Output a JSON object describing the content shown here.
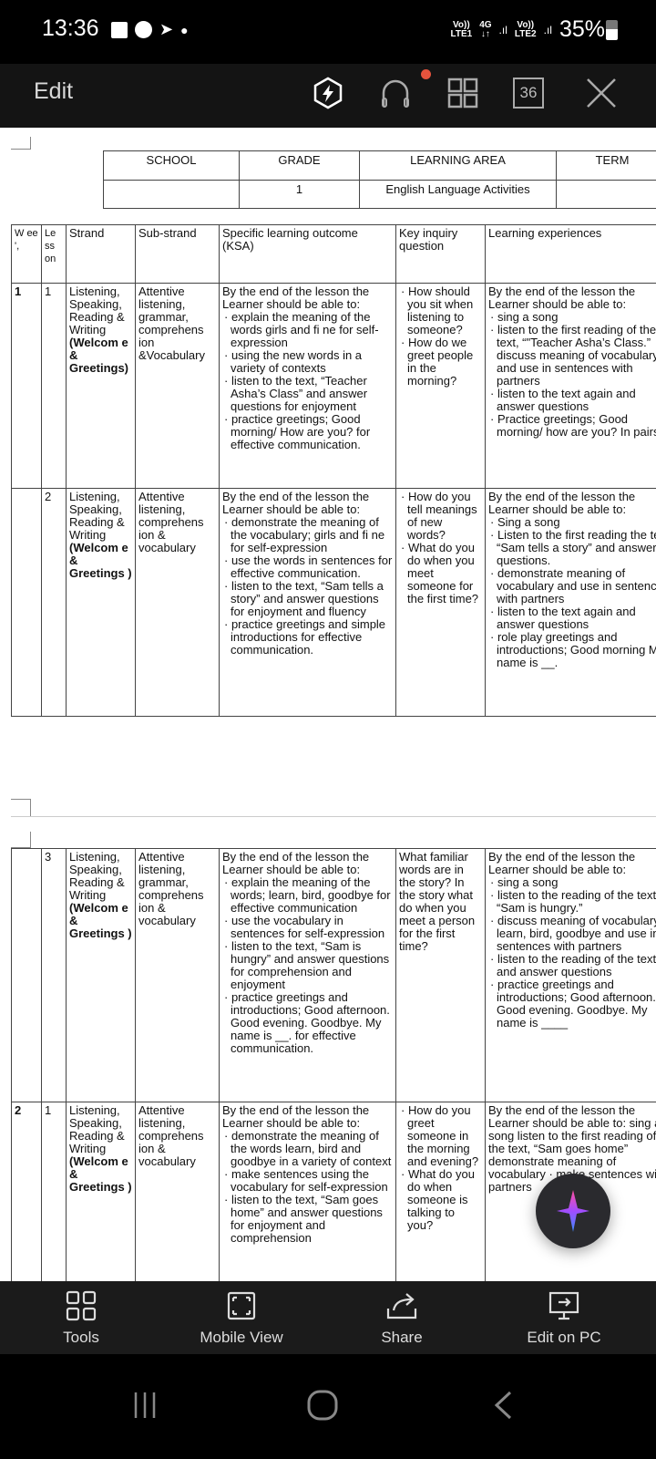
{
  "status_bar": {
    "time": "13:36",
    "net1_top": "Vo))",
    "net1_bottom": "LTE1",
    "net2_top": "4G",
    "net2_bottom": "↓↑",
    "net3_top": "Vo))",
    "net3_bottom": "LTE2",
    "battery": "35%"
  },
  "toolbar": {
    "edit_label": "Edit",
    "page_count": "36",
    "icons": [
      "power-save-icon",
      "headphones-icon",
      "grid-icon",
      "page-count-icon",
      "close-icon"
    ]
  },
  "header_table": {
    "columns": [
      "SCHOOL",
      "GRADE",
      "LEARNING AREA",
      "TERM"
    ],
    "values": [
      "",
      "1",
      "English Language Activities",
      ""
    ]
  },
  "main_table": {
    "columns": [
      "W ee ',",
      "Le ss on",
      "Strand",
      "Sub-strand",
      "Specific learning outcome (KSA)",
      "Key inquiry question",
      "Learning experiences"
    ],
    "rows": [
      {
        "week": "1",
        "lesson": "1",
        "strand": {
          "text": "Listening, Speaking, Reading & Writing",
          "bold": "(Welcom e & Greetings)"
        },
        "substrand": "Attentive listening, grammar, comprehens ion &Vocabulary",
        "outcome": {
          "intro": "By the end of the lesson the Learner should be able to:",
          "bullets": [
            "explain the meaning of the words girls and fi ne for self-expression",
            "using the new words in a variety of contexts",
            "listen to the text, “Teacher Asha’s Class” and answer questions for enjoyment",
            "practice greetings; Good morning/ How are you? for effective communication."
          ]
        },
        "inquiry": {
          "intro": "",
          "bullets": [
            "How should you sit when listening to someone?",
            "How do we greet people in the morning?"
          ]
        },
        "experiences": {
          "intro": "By the end of the lesson the Learner should be able to:",
          "bullets": [
            "sing a song",
            "listen to the first reading of the text, “\"Teacher Asha’s Class.” discuss meaning of vocabulary and use in sentences with partners",
            "listen to the text again and answer questions",
            "Practice greetings; Good morning/ how are you? In pairs."
          ]
        }
      },
      {
        "week": "",
        "lesson": "2",
        "strand": {
          "text": "Listening, Speaking, Reading & Writing",
          "bold": "(Welcom e & Greetings )"
        },
        "substrand": "Attentive listening, comprehens ion & vocabulary",
        "outcome": {
          "intro": "By the end of the lesson the Learner should be able to:",
          "bullets": [
            "demonstrate the meaning of the vocabulary; girls and fi ne for self-expression",
            "use the words in sentences for effective communication.",
            "listen to the text, “Sam tells a story” and answer questions for enjoyment and fluency",
            "practice greetings and simple introductions for effective communication."
          ]
        },
        "inquiry": {
          "intro": "",
          "bullets": [
            "How do you tell meanings of new words?",
            "What do you do when you meet someone for the first time?"
          ]
        },
        "experiences": {
          "intro": "By the end of the lesson the Learner should be able to:",
          "bullets": [
            "Sing a song",
            "Listen to the first reading the text, “Sam tells a story” and answer questions.",
            "demonstrate meaning of vocabulary and use in sentences with partners",
            "listen to the text again and answer questions",
            "role play greetings and introductions; Good morning My name is __."
          ]
        }
      }
    ]
  },
  "main_table_page2": {
    "rows": [
      {
        "week": "",
        "lesson": "3",
        "strand": {
          "text": "Listening, Speaking, Reading & Writing",
          "bold": "(Welcom e & Greetings )"
        },
        "substrand": "Attentive listening, grammar, comprehens ion & vocabulary",
        "outcome": {
          "intro": "By the end of the lesson the Learner should be able to:",
          "bullets": [
            "explain the meaning of the words; learn, bird, goodbye for effective communication",
            "use the vocabulary in sentences for self-expression",
            "listen to the text, “Sam is hungry” and answer questions for comprehension and enjoyment",
            "practice greetings and introductions; Good afternoon. Good evening. Goodbye. My name is __. for effective communication."
          ]
        },
        "inquiry": {
          "intro": "What familiar words are in the story? In the story what do when you meet a person for the first time?",
          "bullets": []
        },
        "experiences": {
          "intro": "By the end of the lesson the Learner should be able to:",
          "bullets": [
            "sing a song",
            "listen to the reading of the text, “Sam is hungry.”",
            "discuss meaning of vocabulary; learn, bird, goodbye and use in sentences with partners",
            "listen to the reading of the text and answer questions",
            "practice greetings and introductions; Good afternoon. Good evening. Goodbye. My name is ____"
          ]
        }
      },
      {
        "week": "2",
        "lesson": "1",
        "strand": {
          "text": "Listening, Speaking, Reading & Writing",
          "bold": "(Welcom e & Greetings )"
        },
        "substrand": "Attentive listening, comprehens ion & vocabulary",
        "outcome": {
          "intro": "By the end of the lesson the Learner should be able to:",
          "bullets": [
            "demonstrate the meaning of the words learn, bird and goodbye in a variety of context",
            "make sentences using the vocabulary for self-expression",
            "listen to the text, “Sam goes home” and answer questions for enjoyment and comprehension"
          ]
        },
        "inquiry": {
          "intro": "",
          "bullets": [
            "How do you greet someone in the morning and evening?",
            "What do you do when someone is talking to you?"
          ]
        },
        "experiences": {
          "intro": "By the end of the lesson the Learner should be able to: sing a song listen to the first reading of the text, “Sam goes home” demonstrate meaning of vocabulary · make sentences with partners",
          "bullets": []
        }
      }
    ]
  },
  "bottom_bar": {
    "tools": "Tools",
    "mobile_view": "Mobile View",
    "share": "Share",
    "edit_on_pc": "Edit on PC"
  },
  "colors": {
    "status_bg": "#000000",
    "toolbar_bg": "#141414",
    "bottom_bar_bg": "#1b1b1b",
    "notification_dot": "#e5533d",
    "fab_gradient_start": "#ff4fa0",
    "fab_gradient_end": "#3d8bff"
  }
}
